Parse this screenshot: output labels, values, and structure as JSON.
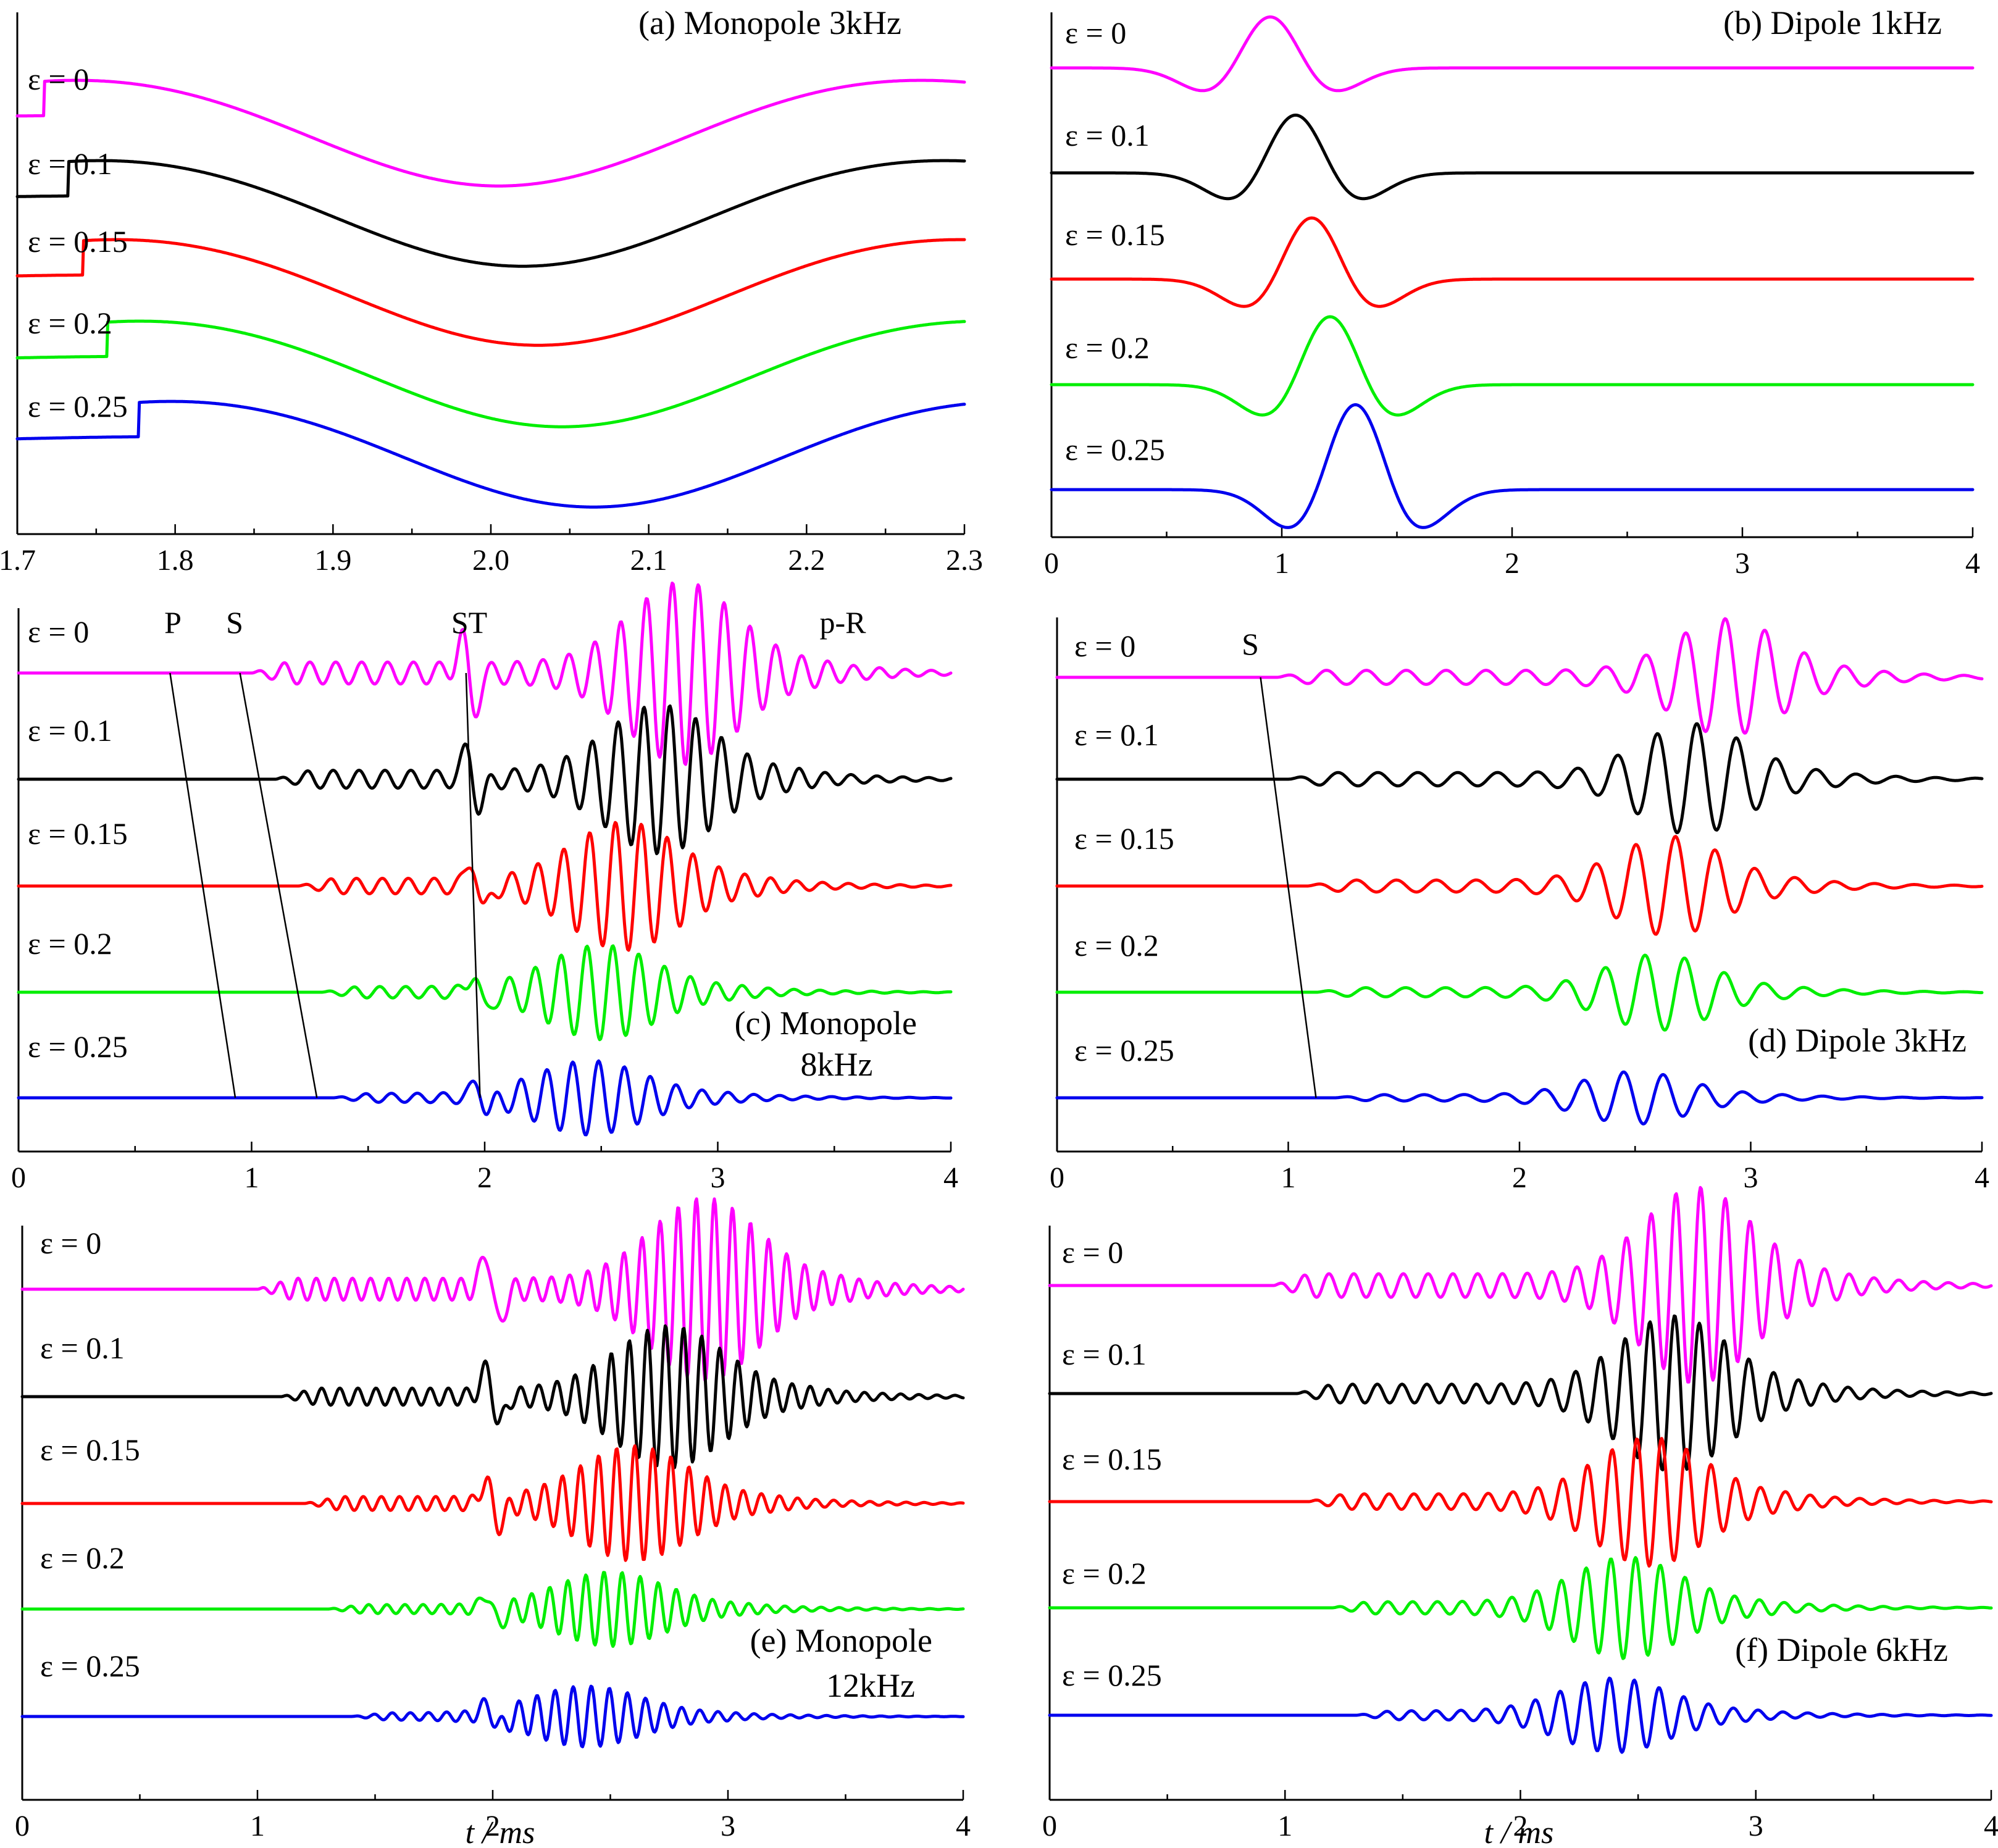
{
  "figure": {
    "x_axis_label": "t / ms",
    "series_colors": [
      "#ff00ff",
      "#000000",
      "#ff0000",
      "#00ee00",
      "#0000ee"
    ],
    "epsilon_labels": [
      "ε = 0",
      "ε = 0.1",
      "ε = 0.15",
      "ε = 0.2",
      "ε = 0.25"
    ]
  },
  "chart_data": [
    {
      "id": "a",
      "type": "line",
      "title": "(a) Monopole 3kHz",
      "xlim": [
        1.7,
        2.3
      ],
      "xticks": [
        1.7,
        1.8,
        1.9,
        2.0,
        2.1,
        2.2,
        2.3
      ],
      "xtick_labels": [
        "1.7",
        "1.8",
        "1.9",
        "2.0",
        "2.1",
        "2.2",
        "2.3"
      ],
      "minor_ticks_per_interval": 1,
      "grid": false,
      "waveform": {
        "kind": "long_wave",
        "trough_times": [
          2.005,
          2.02,
          2.03,
          2.045,
          2.065
        ],
        "period": 0.32,
        "amplitude": 1.0
      },
      "series": [
        {
          "name": "ε = 0",
          "color": "#ff00ff"
        },
        {
          "name": "ε = 0.1",
          "color": "#000000"
        },
        {
          "name": "ε = 0.15",
          "color": "#ff0000"
        },
        {
          "name": "ε = 0.2",
          "color": "#00ee00"
        },
        {
          "name": "ε = 0.25",
          "color": "#0000ee"
        }
      ],
      "annotations": []
    },
    {
      "id": "b",
      "type": "line",
      "title": "(b) Dipole 1kHz",
      "xlim": [
        0,
        4
      ],
      "xticks": [
        0,
        1,
        2,
        3,
        4
      ],
      "xtick_labels": [
        "0",
        "1",
        "2",
        "3",
        "4"
      ],
      "minor_ticks_per_interval": 1,
      "grid": false,
      "waveform": {
        "kind": "ricker_pulse",
        "peak_times": [
          0.95,
          1.06,
          1.13,
          1.21,
          1.32
        ],
        "width": 0.17,
        "amplitude": [
          0.75,
          0.85,
          0.9,
          1.0,
          1.25
        ]
      },
      "series": [
        {
          "name": "ε = 0",
          "color": "#ff00ff"
        },
        {
          "name": "ε = 0.1",
          "color": "#000000"
        },
        {
          "name": "ε = 0.15",
          "color": "#ff0000"
        },
        {
          "name": "ε = 0.2",
          "color": "#00ee00"
        },
        {
          "name": "ε = 0.25",
          "color": "#0000ee"
        }
      ],
      "annotations": []
    },
    {
      "id": "c",
      "type": "line",
      "title": "(c) Monopole",
      "title_line2": "8kHz",
      "xlim": [
        0,
        4
      ],
      "xticks": [
        0,
        1,
        2,
        3,
        4
      ],
      "xtick_labels": [
        "0",
        "1",
        "2",
        "3",
        "4"
      ],
      "minor_ticks_per_interval": 1,
      "grid": false,
      "waveform": {
        "kind": "wave_train",
        "onset_times": [
          1.0,
          1.1,
          1.2,
          1.3,
          1.35
        ],
        "st_time": [
          1.93,
          1.95,
          1.97,
          1.98,
          1.99
        ],
        "center": [
          2.85,
          2.75,
          2.6,
          2.5,
          2.45
        ],
        "amplitude": [
          1.35,
          1.1,
          0.95,
          0.7,
          0.55
        ],
        "freq": 9.0
      },
      "arrival_labels": [
        "P",
        "S",
        "ST",
        "p-R"
      ],
      "moveout_lines": {
        "P": [
          [
            0.65,
            0
          ],
          [
            0.93,
            4
          ]
        ],
        "S": [
          [
            0.95,
            0
          ],
          [
            1.28,
            4
          ]
        ],
        "ST": [
          [
            1.92,
            0
          ],
          [
            1.98,
            4
          ]
        ]
      },
      "series": [
        {
          "name": "ε = 0",
          "color": "#ff00ff"
        },
        {
          "name": "ε = 0.1",
          "color": "#000000"
        },
        {
          "name": "ε = 0.15",
          "color": "#ff0000"
        },
        {
          "name": "ε = 0.2",
          "color": "#00ee00"
        },
        {
          "name": "ε = 0.25",
          "color": "#0000ee"
        }
      ]
    },
    {
      "id": "d",
      "type": "line",
      "title": "(d) Dipole  3kHz",
      "xlim": [
        0,
        4
      ],
      "xticks": [
        0,
        1,
        2,
        3,
        4
      ],
      "xtick_labels": [
        "0",
        "1",
        "2",
        "3",
        "4"
      ],
      "minor_ticks_per_interval": 1,
      "grid": false,
      "waveform": {
        "kind": "wave_train",
        "onset_times": [
          0.95,
          1.0,
          1.08,
          1.12,
          1.2
        ],
        "center": [
          2.9,
          2.75,
          2.65,
          2.6,
          2.5
        ],
        "amplitude": [
          1.0,
          0.95,
          0.85,
          0.65,
          0.45
        ],
        "freq": 5.8
      },
      "arrival_labels": [
        "S"
      ],
      "moveout_lines": {
        "S": [
          [
            0.88,
            0
          ],
          [
            1.12,
            4
          ]
        ]
      },
      "series": [
        {
          "name": "ε = 0",
          "color": "#ff00ff"
        },
        {
          "name": "ε = 0.1",
          "color": "#000000"
        },
        {
          "name": "ε = 0.15",
          "color": "#ff0000"
        },
        {
          "name": "ε = 0.2",
          "color": "#00ee00"
        },
        {
          "name": "ε = 0.25",
          "color": "#0000ee"
        }
      ]
    },
    {
      "id": "e",
      "type": "line",
      "title": "(e) Monopole",
      "title_line2": "12kHz",
      "xlim": [
        0,
        4
      ],
      "xticks": [
        0,
        1,
        2,
        3,
        4
      ],
      "xtick_labels": [
        "0",
        "1",
        "2",
        "3",
        "4"
      ],
      "minor_ticks_per_interval": 1,
      "grid": false,
      "waveform": {
        "kind": "wave_train",
        "onset_times": [
          1.0,
          1.1,
          1.2,
          1.3,
          1.4
        ],
        "st_time": [
          2.0,
          2.0,
          2.0,
          2.0,
          2.0
        ],
        "center": [
          2.9,
          2.75,
          2.6,
          2.5,
          2.4
        ],
        "amplitude": [
          1.35,
          1.05,
          0.85,
          0.55,
          0.45
        ],
        "freq": 13.0
      },
      "series": [
        {
          "name": "ε = 0",
          "color": "#ff00ff"
        },
        {
          "name": "ε = 0.1",
          "color": "#000000"
        },
        {
          "name": "ε = 0.15",
          "color": "#ff0000"
        },
        {
          "name": "ε = 0.2",
          "color": "#00ee00"
        },
        {
          "name": "ε = 0.25",
          "color": "#0000ee"
        }
      ]
    },
    {
      "id": "f",
      "type": "line",
      "title": "(f) Dipole 6kHz",
      "xlim": [
        0,
        4
      ],
      "xticks": [
        0,
        1,
        2,
        3,
        4
      ],
      "xtick_labels": [
        "0",
        "1",
        "2",
        "3",
        "4"
      ],
      "minor_ticks_per_interval": 1,
      "grid": false,
      "waveform": {
        "kind": "wave_train",
        "onset_times": [
          0.95,
          1.05,
          1.1,
          1.2,
          1.3
        ],
        "center": [
          2.75,
          2.65,
          2.55,
          2.45,
          2.4
        ],
        "amplitude": [
          1.45,
          1.15,
          0.95,
          0.75,
          0.55
        ],
        "freq": 9.5
      },
      "series": [
        {
          "name": "ε = 0",
          "color": "#ff00ff"
        },
        {
          "name": "ε = 0.1",
          "color": "#000000"
        },
        {
          "name": "ε = 0.15",
          "color": "#ff0000"
        },
        {
          "name": "ε = 0.2",
          "color": "#00ee00"
        },
        {
          "name": "ε = 0.25",
          "color": "#0000ee"
        }
      ]
    }
  ]
}
